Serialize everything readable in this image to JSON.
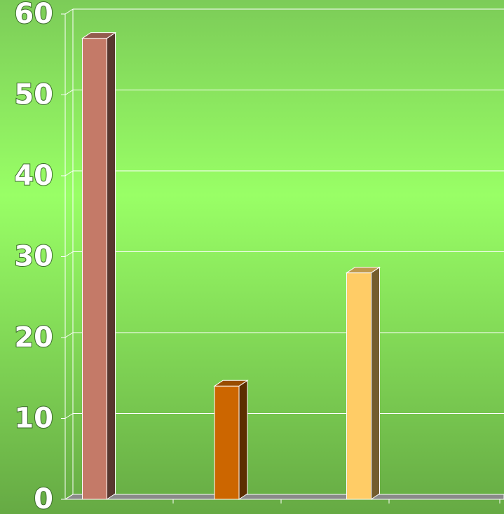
{
  "chart_data": {
    "type": "bar3d",
    "categories": [
      null,
      null,
      null
    ],
    "values": [
      57,
      14,
      28
    ],
    "colors": [
      "#c47a68",
      "#cc6600",
      "#ffcc66"
    ],
    "ylim": [
      0,
      60
    ],
    "yticks": [
      0,
      10,
      20,
      30,
      40,
      50,
      60
    ],
    "grid": true
  }
}
